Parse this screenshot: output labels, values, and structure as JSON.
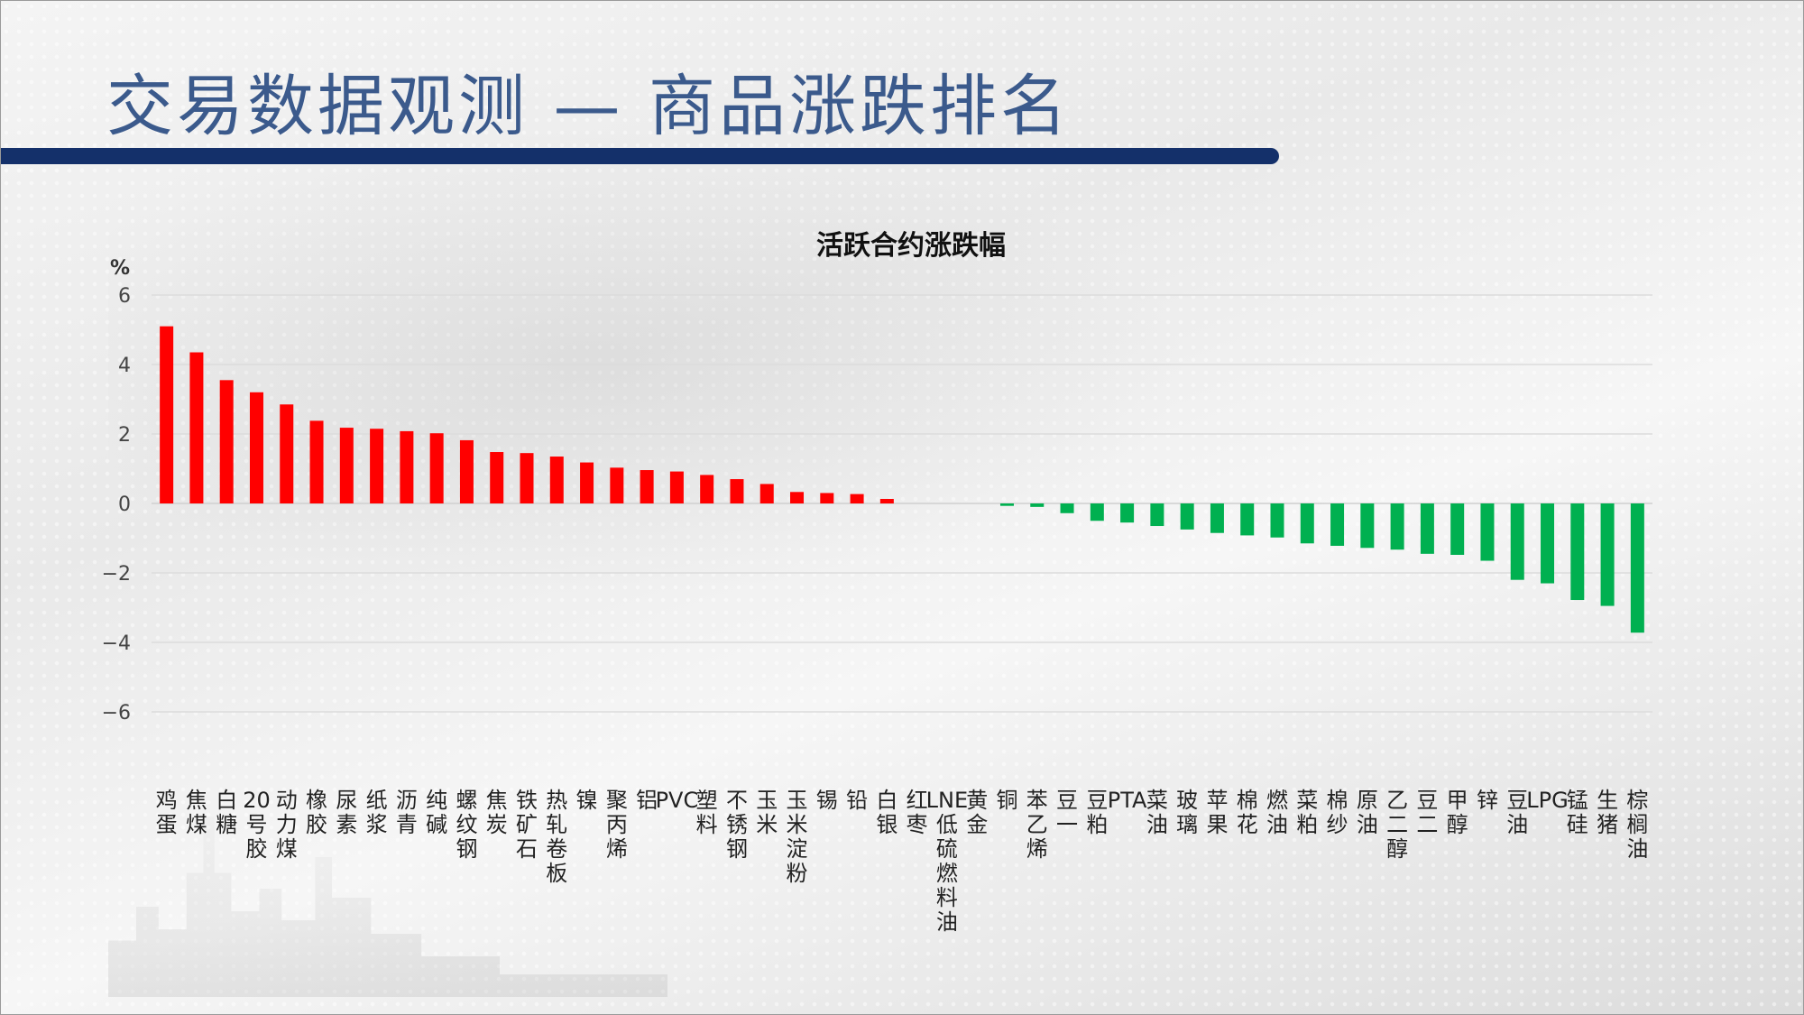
{
  "page": {
    "title": "交易数据观测 — 商品涨跌排名"
  },
  "colors": {
    "up": "#ff0000",
    "down": "#00b050",
    "title": "#3b5a8c",
    "title_bar": "#14306a"
  },
  "chart_data": {
    "type": "bar",
    "title": "活跃合约涨跌幅",
    "ylabel": "%",
    "xlabel": "",
    "ylim": [
      -6,
      6
    ],
    "yticks": [
      6,
      4,
      2,
      0,
      -2,
      -4,
      -6
    ],
    "ytick_labels": [
      "6",
      "4",
      "2",
      "0",
      "−2",
      "−4",
      "−6"
    ],
    "grid": true,
    "legend": "none",
    "categories": [
      "鸡蛋",
      "焦煤",
      "白糖",
      "20号胶",
      "动力煤",
      "橡胶",
      "尿素",
      "纸浆",
      "沥青",
      "纯碱",
      "螺纹钢",
      "焦炭",
      "铁矿石",
      "热轧卷板",
      "镍",
      "聚丙烯",
      "铝",
      "PVC",
      "塑料",
      "不锈钢",
      "玉米",
      "玉米淀粉",
      "锡",
      "铅",
      "白银",
      "红枣",
      "LNE低硫燃料油",
      "黄金",
      "铜",
      "苯乙烯",
      "豆一",
      "豆粕",
      "PTA",
      "菜油",
      "玻璃",
      "苹果",
      "棉花",
      "燃油",
      "菜粕",
      "棉纱",
      "原油",
      "乙二醇",
      "豆二",
      "甲醇",
      "锌",
      "豆油",
      "LPG",
      "锰硅",
      "生猪",
      "棕榈油"
    ],
    "values": [
      5.1,
      4.35,
      3.55,
      3.2,
      2.85,
      2.38,
      2.18,
      2.15,
      2.08,
      2.02,
      1.82,
      1.48,
      1.45,
      1.35,
      1.18,
      1.03,
      0.96,
      0.92,
      0.82,
      0.7,
      0.56,
      0.33,
      0.3,
      0.27,
      0.13,
      0.0,
      0.0,
      0.0,
      -0.07,
      -0.1,
      -0.28,
      -0.5,
      -0.55,
      -0.65,
      -0.75,
      -0.85,
      -0.92,
      -0.98,
      -1.15,
      -1.22,
      -1.28,
      -1.33,
      -1.45,
      -1.48,
      -1.65,
      -2.2,
      -2.3,
      -2.78,
      -2.95,
      -3.72
    ]
  }
}
